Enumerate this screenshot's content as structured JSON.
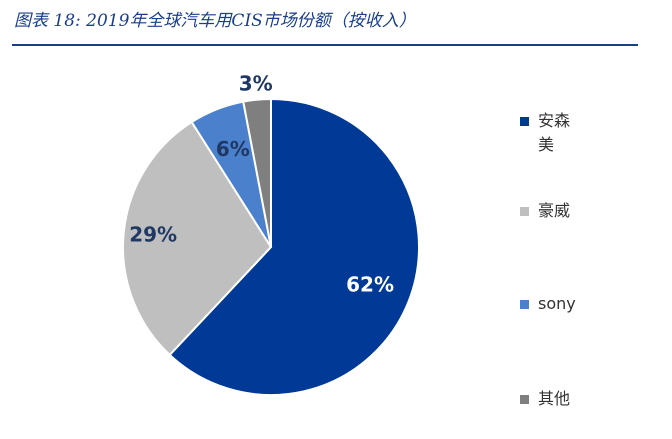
{
  "chart_data": {
    "type": "pie",
    "title": "图表 18:  2019年全球汽车用CIS市场份额（按收入）",
    "slices": [
      {
        "label": "安森美",
        "value": 62,
        "display": "62%",
        "color": "#003a96"
      },
      {
        "label": "豪威",
        "value": 29,
        "display": "29%",
        "color": "#bfbfbf"
      },
      {
        "label": "sony",
        "value": 6,
        "display": "6%",
        "color": "#4a80cc"
      },
      {
        "label": "其他",
        "value": 3,
        "display": "3%",
        "color": "#7f7f7f"
      }
    ],
    "legend_position": "right"
  },
  "colors": {
    "title": "#1a3e8c",
    "label_text": "#1f3864"
  }
}
